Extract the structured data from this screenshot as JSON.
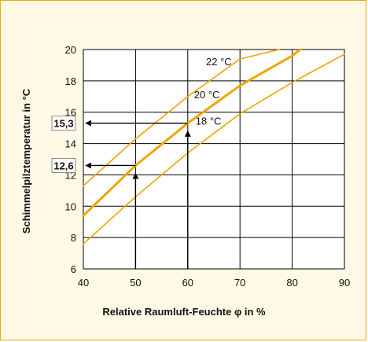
{
  "chart_data": {
    "type": "line",
    "xlabel": "Relative Raumluft-Feuchte φ in %",
    "ylabel": "Schimmelpilztemperatur  in °C",
    "xlim": [
      40,
      90
    ],
    "ylim": [
      6,
      20
    ],
    "x_ticks": [
      40,
      50,
      60,
      70,
      80,
      90
    ],
    "y_ticks": [
      6,
      8,
      10,
      12,
      14,
      16,
      18,
      20
    ],
    "grid": true,
    "series": [
      {
        "name": "22 °C",
        "label": "22 °C",
        "color": "#f0a500",
        "emphasis": false,
        "x": [
          40,
          50,
          60,
          70,
          77.5
        ],
        "y": [
          11.3,
          14.3,
          17.0,
          19.4,
          20.0
        ]
      },
      {
        "name": "20 °C",
        "label": "20 °C",
        "color": "#f0a500",
        "emphasis": true,
        "x": [
          40,
          50,
          60,
          70,
          80,
          81.5
        ],
        "y": [
          9.4,
          12.6,
          15.3,
          17.7,
          19.6,
          20.0
        ]
      },
      {
        "name": "18 °C",
        "label": "18 °C",
        "color": "#f0a500",
        "emphasis": false,
        "x": [
          40,
          50,
          60,
          70,
          80,
          90
        ],
        "y": [
          7.6,
          10.6,
          13.4,
          15.9,
          17.9,
          19.7
        ]
      }
    ],
    "annotations": [
      {
        "label": "15,3",
        "x": 60,
        "y": 15.3
      },
      {
        "label": "12,6",
        "x": 50,
        "y": 12.6
      }
    ]
  }
}
